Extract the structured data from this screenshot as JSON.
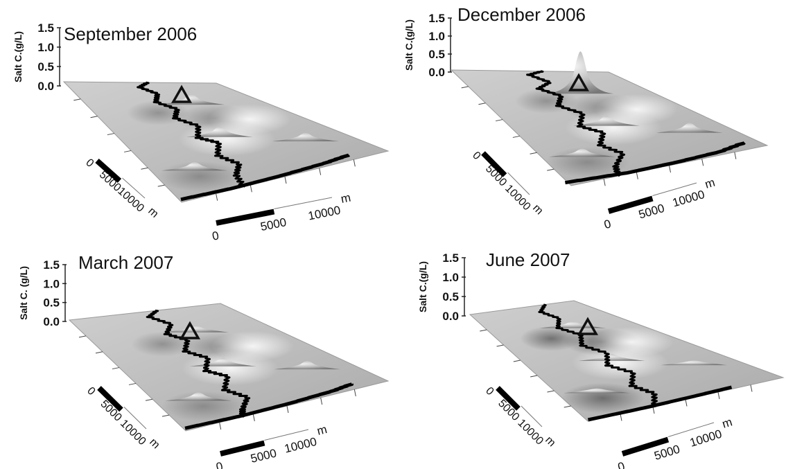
{
  "chart_data": [
    {
      "type": "surface",
      "title": "September 2006",
      "zlabel": "Salt C.(g/L)",
      "z_ticks": [
        "0.0",
        "0.5",
        "1.0",
        "1.5"
      ],
      "zlim": [
        0,
        1.5
      ],
      "scale_bar_bottom": {
        "labels": [
          "0",
          "5000",
          "10000"
        ],
        "unit": "m"
      },
      "scale_bar_side": {
        "labels": [
          "0",
          "500010000"
        ],
        "unit": "m"
      },
      "marker": "triangle",
      "peaks": [
        0.2,
        0.15,
        0.15,
        0.2
      ]
    },
    {
      "type": "surface",
      "title": "December 2006",
      "zlabel": "Salt C.(g/L)",
      "z_ticks": [
        "0.0",
        "0.5",
        "1.0",
        "1.5"
      ],
      "zlim": [
        0,
        1.5
      ],
      "scale_bar_bottom": {
        "labels": [
          "0",
          "5000",
          "10000"
        ],
        "unit": "m"
      },
      "scale_bar_side": {
        "labels": [
          "0",
          "5000",
          "10000"
        ],
        "unit": "m"
      },
      "marker": "triangle",
      "peaks": [
        1.1,
        0.2,
        0.15,
        0.2
      ]
    },
    {
      "type": "surface",
      "title": "March 2007",
      "zlabel": "Salt C. (g/L)",
      "z_ticks": [
        "0.0",
        "0.5",
        "1.0",
        "1.5"
      ],
      "zlim": [
        0,
        1.5
      ],
      "scale_bar_bottom": {
        "labels": [
          "0",
          "5000",
          "10000"
        ],
        "unit": "m"
      },
      "scale_bar_side": {
        "labels": [
          "0",
          "5000",
          "10000"
        ],
        "unit": "m"
      },
      "marker": "triangle",
      "peaks": [
        0.1,
        0.15,
        0.15,
        0.15
      ]
    },
    {
      "type": "surface",
      "title": "June 2007",
      "zlabel": "Salt C.(g/L)",
      "z_ticks": [
        "0.0",
        "0.5",
        "1.0",
        "1.5"
      ],
      "zlim": [
        0,
        1.5
      ],
      "scale_bar_bottom": {
        "labels": [
          "0",
          "5000",
          "10000"
        ],
        "unit": "m"
      },
      "scale_bar_side": {
        "labels": [
          "0",
          "5000",
          "10000"
        ],
        "unit": "m"
      },
      "marker": "triangle",
      "peaks": [
        0.1,
        0.05,
        0.05,
        0.1
      ]
    }
  ]
}
